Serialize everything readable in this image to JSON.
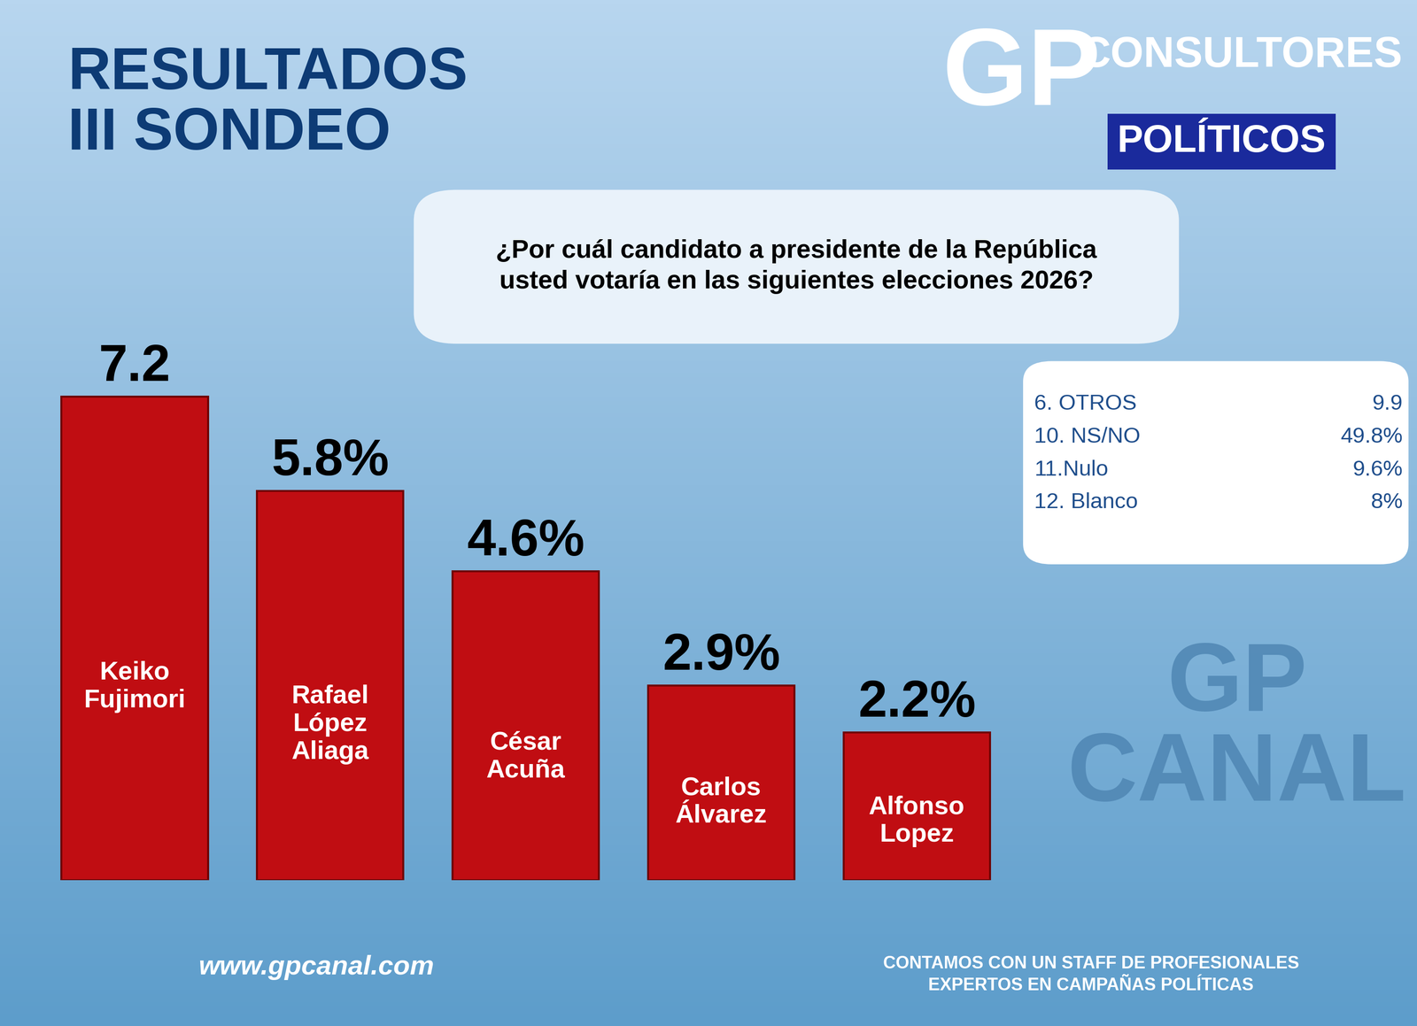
{
  "chart_data": {
    "type": "bar",
    "title": "RESULTADOS\nIII SONDEO",
    "subtitle": "¿Por cuál candidato a presidente de la República\nusted votaría en las siguientes elecciones 2026?",
    "categories": [
      "Keiko\nFujimori",
      "Rafael\nLópez\nAliaga",
      "César\nAcuña",
      "Carlos\nÁlvarez",
      "Alfonso\nLopez"
    ],
    "values": [
      7.2,
      5.8,
      4.6,
      2.9,
      2.2
    ],
    "value_labels": [
      "7.2",
      "5.8%",
      "4.6%",
      "2.9%",
      "2.2%"
    ],
    "color": "#c00d12",
    "data_labels": true,
    "tick_labels": false,
    "ylim": [
      0,
      9
    ],
    "other_answers": {
      "labels": [
        "6. OTROS",
        "10. NS/NO",
        "11.Nulo",
        "12. Blanco"
      ],
      "values": [
        9.9,
        49.8,
        9.6,
        8
      ],
      "value_labels": [
        "9.9",
        "49.8%",
        "9.6%",
        "8%"
      ]
    },
    "brand": {
      "logo": "GP",
      "line1": "CONSULTORES",
      "line2": "POLÍTICOS"
    },
    "watermark": "GP\nCANAL",
    "footer_left": "www.gpcanal.com",
    "footer_right": "CONTAMOS CON UN STAFF DE PROFESIONALES\nEXPERTOS EN CAMPAÑAS POLÍTICAS"
  }
}
